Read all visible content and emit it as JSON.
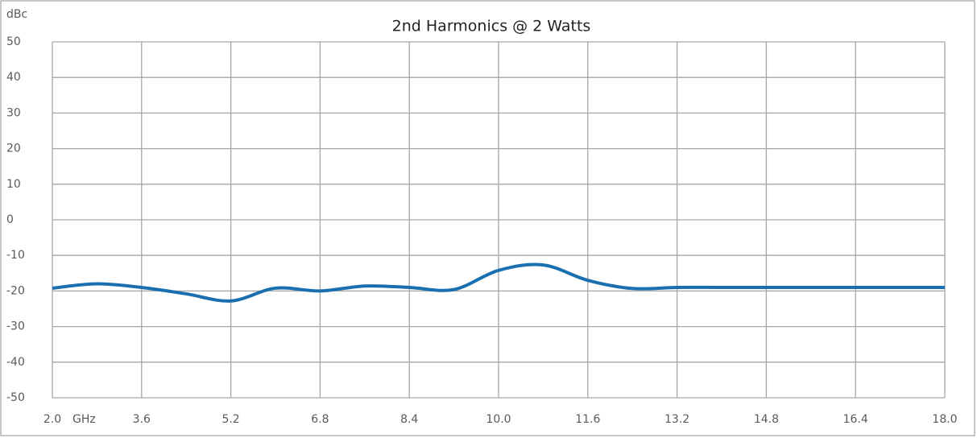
{
  "chart_data": {
    "type": "line",
    "title": "2nd Harmonics @ 2 Watts",
    "y_label": "dBc",
    "x_label": "GHz",
    "x": [
      2.0,
      2.8,
      3.6,
      4.4,
      5.2,
      6.0,
      6.8,
      7.6,
      8.4,
      9.2,
      10.0,
      10.8,
      11.6,
      12.4,
      13.2,
      14.0,
      14.8,
      15.6,
      16.4,
      17.2,
      18.0
    ],
    "series": [
      {
        "name": "2nd Harmonics",
        "color": "#1a6fb0",
        "values": [
          -19.2,
          -18,
          -19,
          -20.8,
          -22.8,
          -19.2,
          -20,
          -18.6,
          -19,
          -19.6,
          -14.2,
          -12.7,
          -17,
          -19.3,
          -19,
          -19,
          -19,
          -19,
          -19,
          -19,
          -19
        ]
      }
    ],
    "xlim": [
      2.0,
      18.0
    ],
    "xticks": [
      {
        "value": 2.0,
        "label": "2.0"
      },
      {
        "value": 3.6,
        "label": "3.6"
      },
      {
        "value": 5.2,
        "label": "5.2"
      },
      {
        "value": 6.8,
        "label": "6.8"
      },
      {
        "value": 8.4,
        "label": "8.4"
      },
      {
        "value": 10.0,
        "label": "10.0"
      },
      {
        "value": 11.6,
        "label": "11.6"
      },
      {
        "value": 13.2,
        "label": "13.2"
      },
      {
        "value": 14.8,
        "label": "14.8"
      },
      {
        "value": 16.4,
        "label": "16.4"
      },
      {
        "value": 18.0,
        "label": "18.0"
      }
    ],
    "ylim": [
      -50,
      50
    ],
    "yticks": [
      -50,
      -40,
      -30,
      -20,
      -10,
      0,
      10,
      20,
      30,
      40,
      50
    ],
    "grid": true
  }
}
